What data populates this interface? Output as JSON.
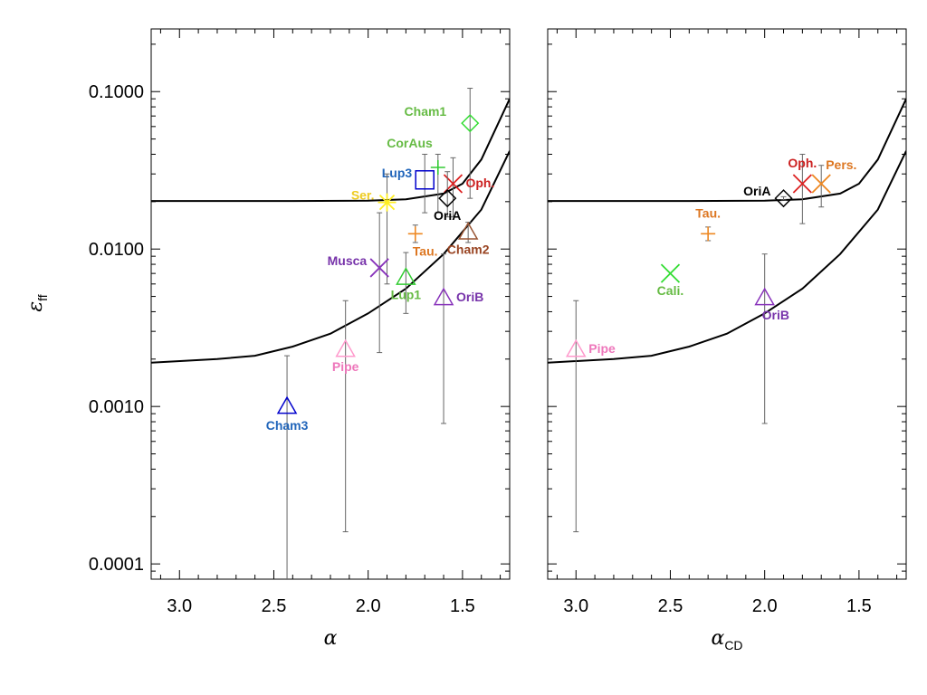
{
  "chart_data": [
    {
      "type": "scatter",
      "yscale": "log",
      "title": "",
      "xlabel": "α",
      "ylabel": "ε",
      "ylabel_sub": "ff",
      "xlim": [
        3.15,
        1.25
      ],
      "ylim": [
        8e-05,
        0.25
      ],
      "xticks": [
        3.0,
        2.5,
        2.0,
        1.5
      ],
      "xtick_labels": [
        "3.0",
        "2.5",
        "2.0",
        "1.5"
      ],
      "yticks": [
        0.0001,
        0.001,
        0.01,
        0.1
      ],
      "ytick_labels": [
        "0.0001",
        "0.0010",
        "0.0100",
        "0.1000"
      ],
      "points": [
        {
          "name": "Cham1",
          "x": 1.46,
          "y": 0.063,
          "yerr_low": 0.021,
          "yerr_high": 0.105,
          "marker": "diamond",
          "color": "#33dd33",
          "label_color": "#66bb44",
          "label_pos": "upper-left"
        },
        {
          "name": "CorAus",
          "x": 1.63,
          "y": 0.033,
          "yerr_low": 0.017,
          "yerr_high": 0.04,
          "marker": "plus",
          "color": "#33cc33",
          "label_color": "#66bb44",
          "label_pos": "above-left"
        },
        {
          "name": "Lup3",
          "x": 1.7,
          "y": 0.0275,
          "yerr_low": 0.017,
          "yerr_high": 0.04,
          "marker": "square",
          "color": "#0000cc",
          "label_color": "#2266bb",
          "label_pos": "left"
        },
        {
          "name": "Oph.",
          "x": 1.55,
          "y": 0.026,
          "yerr_low": 0.016,
          "yerr_high": 0.038,
          "marker": "x",
          "color": "#dd2222",
          "label_color": "#cc2222",
          "label_pos": "right"
        },
        {
          "name": "Ser.",
          "x": 1.9,
          "y": 0.0198,
          "yerr_low": 0.006,
          "yerr_high": 0.03,
          "marker": "asterisk",
          "color": "#ffee22",
          "label_color": "#eecc22",
          "label_pos": "left"
        },
        {
          "name": "OriA",
          "x": 1.58,
          "y": 0.021,
          "yerr_low": 0.016,
          "yerr_high": 0.031,
          "marker": "diamond",
          "color": "#000000",
          "label_color": "#000000",
          "label_pos": "below"
        },
        {
          "name": "Tau.",
          "x": 1.75,
          "y": 0.0125,
          "yerr_low": 0.011,
          "yerr_high": 0.0142,
          "marker": "plus",
          "color": "#ee8822",
          "label_color": "#dd7722",
          "label_pos": "below-right"
        },
        {
          "name": "Cham2",
          "x": 1.47,
          "y": 0.0128,
          "yerr_low": 0.011,
          "yerr_high": 0.0148,
          "marker": "triangle",
          "color": "#995533",
          "label_color": "#994422",
          "label_pos": "below"
        },
        {
          "name": "Musca",
          "x": 1.94,
          "y": 0.0076,
          "yerr_low": 0.0022,
          "yerr_high": 0.017,
          "marker": "x",
          "color": "#8833bb",
          "label_color": "#7733aa",
          "label_pos": "left"
        },
        {
          "name": "Lup1",
          "x": 1.8,
          "y": 0.0066,
          "yerr_low": 0.0039,
          "yerr_high": 0.0095,
          "marker": "triangle",
          "color": "#33cc33",
          "label_color": "#66bb44",
          "label_pos": "below"
        },
        {
          "name": "OriB",
          "x": 1.6,
          "y": 0.0049,
          "yerr_low": 0.00078,
          "yerr_high": 0.0093,
          "marker": "triangle",
          "color": "#8833bb",
          "label_color": "#7733aa",
          "label_pos": "right"
        },
        {
          "name": "Pipe",
          "x": 2.12,
          "y": 0.0023,
          "yerr_low": 0.00016,
          "yerr_high": 0.0047,
          "marker": "triangle",
          "color": "#ff99cc",
          "label_color": "#ee77bb",
          "label_pos": "below"
        },
        {
          "name": "Cham3",
          "x": 2.43,
          "y": 0.001,
          "yerr_low": 5e-05,
          "yerr_high": 0.0021,
          "marker": "triangle",
          "color": "#0000cc",
          "label_color": "#2266bb",
          "label_pos": "below-left"
        }
      ],
      "curves": [
        {
          "name": "upper",
          "x": [
            3.15,
            2.8,
            2.4,
            2.0,
            1.8,
            1.6,
            1.5,
            1.4,
            1.25
          ],
          "y": [
            0.0202,
            0.0202,
            0.0202,
            0.0203,
            0.0207,
            0.0225,
            0.026,
            0.037,
            0.09
          ]
        },
        {
          "name": "lower",
          "x": [
            3.15,
            2.8,
            2.6,
            2.4,
            2.2,
            2.0,
            1.8,
            1.6,
            1.4,
            1.25
          ],
          "y": [
            0.0019,
            0.002,
            0.0021,
            0.0024,
            0.0029,
            0.0039,
            0.0056,
            0.0093,
            0.0178,
            0.042
          ]
        }
      ]
    },
    {
      "type": "scatter",
      "yscale": "log",
      "title": "",
      "xlabel": "α",
      "xlabel_sub": "CD",
      "ylabel": "",
      "xlim": [
        3.15,
        1.25
      ],
      "ylim": [
        8e-05,
        0.25
      ],
      "xticks": [
        3.0,
        2.5,
        2.0,
        1.5
      ],
      "xtick_labels": [
        "3.0",
        "2.5",
        "2.0",
        "1.5"
      ],
      "yticks": [
        0.0001,
        0.001,
        0.01,
        0.1
      ],
      "points": [
        {
          "name": "Oph.",
          "x": 1.8,
          "y": 0.026,
          "yerr_low": 0.0145,
          "yerr_high": 0.04,
          "marker": "x",
          "color": "#dd2222",
          "label_color": "#cc2222",
          "label_pos": "above"
        },
        {
          "name": "Pers.",
          "x": 1.7,
          "y": 0.026,
          "yerr_low": 0.0185,
          "yerr_high": 0.034,
          "marker": "x",
          "color": "#ee8822",
          "label_color": "#dd7722",
          "label_pos": "upper-right"
        },
        {
          "name": "OriA",
          "x": 1.9,
          "y": 0.021,
          "yerr_low": 0.0205,
          "yerr_high": 0.0215,
          "marker": "diamond",
          "color": "#000000",
          "label_color": "#000000",
          "label_pos": "left"
        },
        {
          "name": "Tau.",
          "x": 2.3,
          "y": 0.0125,
          "yerr_low": 0.0113,
          "yerr_high": 0.0138,
          "marker": "plus",
          "color": "#ee8822",
          "label_color": "#dd7722",
          "label_pos": "above"
        },
        {
          "name": "Cali.",
          "x": 2.5,
          "y": 0.007,
          "yerr_low": 0.007,
          "yerr_high": 0.007,
          "marker": "x",
          "color": "#33dd33",
          "label_color": "#66bb44",
          "label_pos": "below"
        },
        {
          "name": "OriB",
          "x": 2.0,
          "y": 0.0049,
          "yerr_low": 0.00078,
          "yerr_high": 0.0093,
          "marker": "triangle",
          "color": "#8833bb",
          "label_color": "#7733aa",
          "label_pos": "below-right"
        },
        {
          "name": "Pipe",
          "x": 3.0,
          "y": 0.0023,
          "yerr_low": 0.00016,
          "yerr_high": 0.0047,
          "marker": "triangle",
          "color": "#ff99cc",
          "label_color": "#ee77bb",
          "label_pos": "right"
        }
      ],
      "curves": [
        {
          "name": "upper",
          "x": [
            3.15,
            2.8,
            2.4,
            2.0,
            1.8,
            1.6,
            1.5,
            1.4,
            1.25
          ],
          "y": [
            0.0202,
            0.0202,
            0.0202,
            0.0203,
            0.0207,
            0.0225,
            0.026,
            0.037,
            0.09
          ]
        },
        {
          "name": "lower",
          "x": [
            3.15,
            2.8,
            2.6,
            2.4,
            2.2,
            2.0,
            1.8,
            1.6,
            1.4,
            1.25
          ],
          "y": [
            0.0019,
            0.002,
            0.0021,
            0.0024,
            0.0029,
            0.0039,
            0.0056,
            0.0093,
            0.0178,
            0.042
          ]
        }
      ]
    }
  ]
}
